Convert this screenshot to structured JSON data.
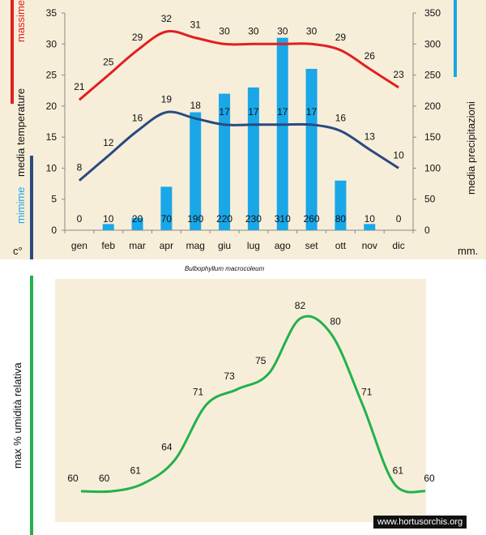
{
  "chart_data": [
    {
      "type": "line+bar",
      "categories": [
        "gen",
        "feb",
        "mar",
        "apr",
        "mag",
        "giu",
        "lug",
        "ago",
        "set",
        "ott",
        "nov",
        "dic"
      ],
      "series": [
        {
          "name": "massime",
          "kind": "line",
          "axis": "left",
          "color": "#e02020",
          "values": [
            21,
            25,
            29,
            32,
            31,
            30,
            30,
            30,
            30,
            29,
            26,
            23
          ]
        },
        {
          "name": "mimime",
          "kind": "line",
          "axis": "left",
          "color": "#2a4a80",
          "values": [
            8,
            12,
            16,
            19,
            18,
            17,
            17,
            17,
            17,
            16,
            13,
            10
          ]
        },
        {
          "kind": "bar",
          "axis": "right",
          "color": "#1aa7e8",
          "values": [
            0,
            10,
            20,
            70,
            190,
            220,
            230,
            310,
            260,
            80,
            10,
            0
          ]
        }
      ],
      "y_left": {
        "min": 0,
        "max": 35,
        "ticks": [
          "0",
          "5",
          "10",
          "15",
          "20",
          "25",
          "30",
          "35"
        ]
      },
      "y_right": {
        "min": 0,
        "max": 350,
        "ticks": [
          "0",
          "50",
          "100",
          "150",
          "200",
          "250",
          "300",
          "350"
        ]
      },
      "labels": {
        "left_top": "massime",
        "left_mid": "media  temperature",
        "left_bottom": "mimime",
        "left_unit": "c°",
        "right": "media  precipitazioni",
        "right_unit": "mm."
      },
      "colors": {
        "max_bar": "#e02020",
        "min_bar": "#2a4a80",
        "rain_bar": "#1aa7e8"
      }
    },
    {
      "type": "line",
      "values": [
        60,
        60,
        61,
        64,
        71,
        73,
        75,
        82,
        80,
        71,
        61,
        60
      ],
      "ylabel": "max  %  umidità relativa",
      "color": "#22b14c",
      "y_range": [
        57,
        85
      ]
    }
  ],
  "caption": "Bulbophyllum macrocoleum",
  "watermark": "www.hortusorchis.org"
}
